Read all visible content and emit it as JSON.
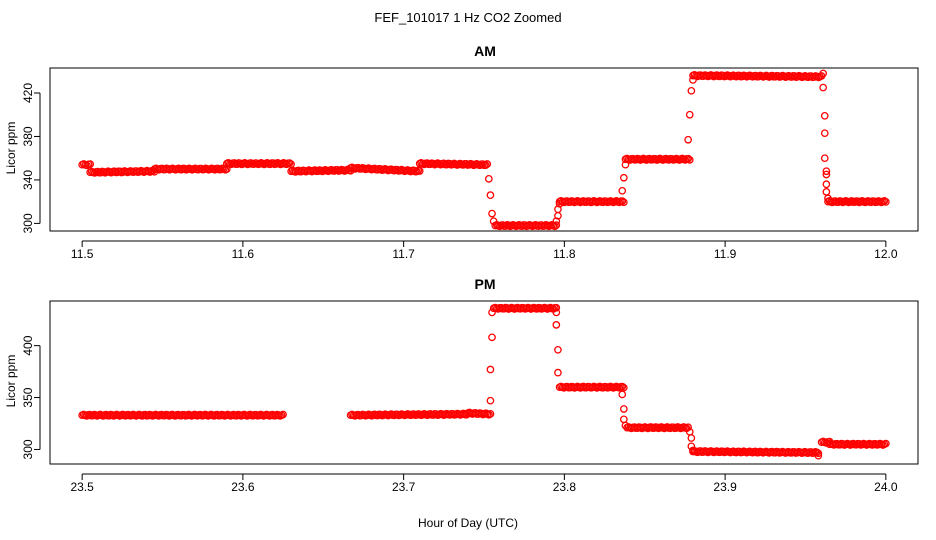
{
  "figure": {
    "title": "FEF_101017  1 Hz CO2 Zoomed",
    "xlabel": "Hour of Day (UTC)"
  },
  "colors": {
    "points": "#ff0000",
    "axes": "#000000"
  },
  "chart_data": [
    {
      "type": "scatter",
      "title": "AM",
      "xlabel": "",
      "ylabel": "Licor ppm",
      "xlim": [
        11.48,
        12.02
      ],
      "ylim": [
        293,
        443
      ],
      "xticks": [
        11.5,
        11.6,
        11.7,
        11.8,
        11.9,
        12.0
      ],
      "xtick_labels": [
        "11.5",
        "11.6",
        "11.7",
        "11.8",
        "11.9",
        "12.0"
      ],
      "yticks": [
        300,
        340,
        380,
        420
      ],
      "ytick_labels": [
        "300",
        "340",
        "380",
        "420"
      ],
      "grid": false,
      "series": [
        {
          "marker": "open-circle",
          "segments": [
            {
              "x": [
                11.5,
                11.505
              ],
              "y": [
                354,
                354
              ]
            },
            {
              "x": [
                11.505,
                11.545
              ],
              "y": [
                347,
                348
              ]
            },
            {
              "x": [
                11.545,
                11.59
              ],
              "y": [
                350,
                350
              ]
            },
            {
              "x": [
                11.59,
                11.63
              ],
              "y": [
                355,
                355
              ]
            },
            {
              "x": [
                11.63,
                11.667
              ],
              "y": [
                348,
                349
              ]
            },
            {
              "x": [
                11.667,
                11.71
              ],
              "y": [
                351,
                348
              ]
            },
            {
              "x": [
                11.71,
                11.752
              ],
              "y": [
                355,
                354
              ]
            },
            {
              "x": [
                11.757,
                11.795
              ],
              "y": [
                298,
                298
              ]
            },
            {
              "x": [
                11.797,
                11.837
              ],
              "y": [
                320,
                320
              ]
            },
            {
              "x": [
                11.838,
                11.878
              ],
              "y": [
                359,
                359
              ]
            },
            {
              "x": [
                11.88,
                11.96
              ],
              "y": [
                436,
                435
              ]
            },
            {
              "x": [
                11.964,
                12.0
              ],
              "y": [
                320,
                320
              ]
            }
          ],
          "points": [
            {
              "x": 11.753,
              "y": 341
            },
            {
              "x": 11.754,
              "y": 326
            },
            {
              "x": 11.755,
              "y": 309
            },
            {
              "x": 11.756,
              "y": 302
            },
            {
              "x": 11.795,
              "y": 302
            },
            {
              "x": 11.796,
              "y": 307
            },
            {
              "x": 11.796,
              "y": 313
            },
            {
              "x": 11.797,
              "y": 318
            },
            {
              "x": 11.836,
              "y": 330
            },
            {
              "x": 11.837,
              "y": 342
            },
            {
              "x": 11.838,
              "y": 354
            },
            {
              "x": 11.877,
              "y": 377
            },
            {
              "x": 11.878,
              "y": 400
            },
            {
              "x": 11.879,
              "y": 422
            },
            {
              "x": 11.88,
              "y": 432
            },
            {
              "x": 11.961,
              "y": 438
            },
            {
              "x": 11.961,
              "y": 425
            },
            {
              "x": 11.962,
              "y": 399
            },
            {
              "x": 11.962,
              "y": 383
            },
            {
              "x": 11.962,
              "y": 360
            },
            {
              "x": 11.963,
              "y": 348
            },
            {
              "x": 11.963,
              "y": 345
            },
            {
              "x": 11.963,
              "y": 336
            },
            {
              "x": 11.963,
              "y": 329
            },
            {
              "x": 11.964,
              "y": 323
            }
          ]
        }
      ]
    },
    {
      "type": "scatter",
      "title": "PM",
      "xlabel": "Hour of Day (UTC)",
      "ylabel": "Licor ppm",
      "xlim": [
        23.48,
        24.02
      ],
      "ylim": [
        286,
        443
      ],
      "xticks": [
        23.5,
        23.6,
        23.7,
        23.8,
        23.9,
        24.0
      ],
      "xtick_labels": [
        "23.5",
        "23.6",
        "23.7",
        "23.8",
        "23.9",
        "24.0"
      ],
      "yticks": [
        300,
        350,
        400
      ],
      "ytick_labels": [
        "300",
        "350",
        "400"
      ],
      "grid": false,
      "series": [
        {
          "marker": "open-circle",
          "segments": [
            {
              "x": [
                23.5,
                23.625
              ],
              "y": [
                333,
                333
              ]
            },
            {
              "x": [
                23.667,
                23.74
              ],
              "y": [
                333,
                334
              ]
            },
            {
              "x": [
                23.74,
                23.754
              ],
              "y": [
                335,
                334
              ]
            },
            {
              "x": [
                23.756,
                23.795
              ],
              "y": [
                436,
                436
              ]
            },
            {
              "x": [
                23.797,
                23.837
              ],
              "y": [
                360,
                360
              ]
            },
            {
              "x": [
                23.839,
                23.877
              ],
              "y": [
                321,
                321
              ]
            },
            {
              "x": [
                23.88,
                23.958
              ],
              "y": [
                298,
                297
              ]
            },
            {
              "x": [
                23.96,
                23.965
              ],
              "y": [
                307,
                307
              ]
            },
            {
              "x": [
                23.965,
                24.0
              ],
              "y": [
                305,
                305
              ]
            }
          ],
          "points": [
            {
              "x": 23.754,
              "y": 347
            },
            {
              "x": 23.754,
              "y": 377
            },
            {
              "x": 23.755,
              "y": 408
            },
            {
              "x": 23.755,
              "y": 432
            },
            {
              "x": 23.795,
              "y": 432
            },
            {
              "x": 23.795,
              "y": 420
            },
            {
              "x": 23.796,
              "y": 396
            },
            {
              "x": 23.796,
              "y": 374
            },
            {
              "x": 23.836,
              "y": 353
            },
            {
              "x": 23.837,
              "y": 339
            },
            {
              "x": 23.837,
              "y": 329
            },
            {
              "x": 23.838,
              "y": 323
            },
            {
              "x": 23.878,
              "y": 317
            },
            {
              "x": 23.879,
              "y": 311
            },
            {
              "x": 23.879,
              "y": 303
            },
            {
              "x": 23.88,
              "y": 299
            },
            {
              "x": 23.958,
              "y": 294
            }
          ]
        }
      ]
    }
  ]
}
